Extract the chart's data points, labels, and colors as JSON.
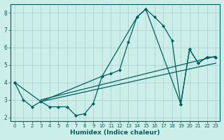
{
  "xlabel": "Humidex (Indice chaleur)",
  "bg_color": "#cceee8",
  "line_color": "#006060",
  "grid_color": "#aacccc",
  "xlim": [
    -0.5,
    23.5
  ],
  "ylim": [
    1.8,
    8.5
  ],
  "yticks": [
    2,
    3,
    4,
    5,
    6,
    7,
    8
  ],
  "xticks": [
    0,
    1,
    2,
    3,
    4,
    5,
    6,
    7,
    8,
    9,
    10,
    11,
    12,
    13,
    14,
    15,
    16,
    17,
    18,
    19,
    20,
    21,
    22,
    23
  ],
  "line1_x": [
    0,
    1,
    2,
    3,
    4,
    5,
    6,
    7,
    8,
    9,
    10,
    11,
    12,
    13,
    14,
    15,
    16,
    17,
    18,
    19,
    20,
    21,
    22,
    23
  ],
  "line1_y": [
    4.0,
    3.0,
    2.6,
    2.9,
    2.6,
    2.6,
    2.6,
    2.1,
    2.2,
    2.8,
    4.35,
    4.5,
    4.7,
    6.3,
    7.75,
    8.2,
    7.75,
    7.25,
    6.4,
    2.75,
    5.9,
    5.1,
    5.45,
    5.45
  ],
  "line2_x": [
    0,
    3,
    10,
    14,
    15,
    19,
    20,
    21,
    22,
    23
  ],
  "line2_y": [
    4.0,
    2.9,
    4.35,
    7.75,
    8.2,
    2.75,
    5.9,
    5.1,
    5.45,
    5.45
  ],
  "line3_x": [
    3,
    23
  ],
  "line3_y": [
    3.0,
    5.5
  ],
  "line4_x": [
    3,
    23
  ],
  "line4_y": [
    2.9,
    5.1
  ]
}
